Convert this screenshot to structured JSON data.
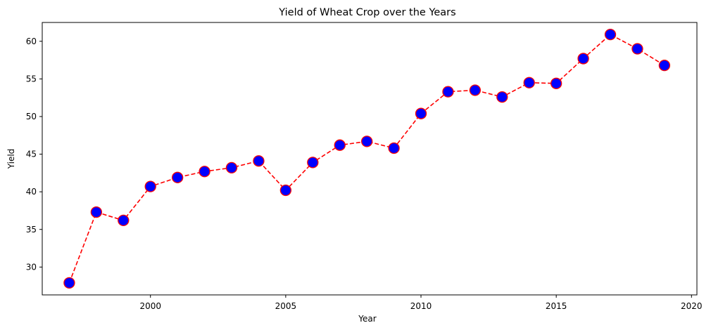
{
  "chart_data": {
    "type": "line",
    "title": "Yield of Wheat Crop over the Years",
    "xlabel": "Year",
    "ylabel": "Yield",
    "xlim": [
      1996.0,
      2020.2
    ],
    "ylim": [
      26.3,
      62.5
    ],
    "xticks": [
      2000,
      2005,
      2010,
      2015,
      2020
    ],
    "yticks": [
      30,
      35,
      40,
      45,
      50,
      55,
      60
    ],
    "grid": false,
    "line_color": "#ff0000",
    "line_style": "dashed",
    "marker_face_color": "#0000ff",
    "marker_edge_color": "#ff0000",
    "series": [
      {
        "x": [
          1997,
          1998,
          1999,
          2000,
          2001,
          2002,
          2003,
          2004,
          2005,
          2006,
          2007,
          2008,
          2009,
          2010,
          2011,
          2012,
          2013,
          2014,
          2015,
          2016,
          2017,
          2018,
          2019
        ],
        "values": [
          27.9,
          37.3,
          36.2,
          40.7,
          41.9,
          42.7,
          43.2,
          44.1,
          40.2,
          43.9,
          46.2,
          46.7,
          45.8,
          50.4,
          53.3,
          53.5,
          52.6,
          54.5,
          54.4,
          57.7,
          60.9,
          59.0,
          56.8
        ]
      }
    ]
  }
}
